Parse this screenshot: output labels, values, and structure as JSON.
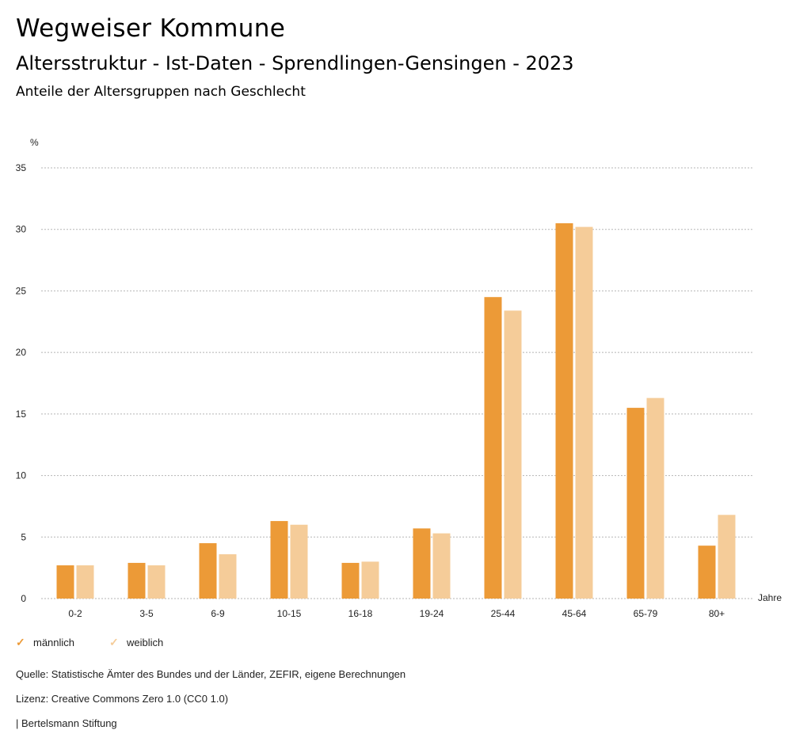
{
  "header": {
    "title": "Wegweiser Kommune",
    "subtitle": "Altersstruktur - Ist-Daten - Sprendlingen-Gensingen - 2023",
    "subsubtitle": "Anteile der Altersgruppen nach Geschlecht"
  },
  "chart_data": {
    "type": "bar",
    "title": "Anteile der Altersgruppen nach Geschlecht",
    "ylabel": "%",
    "xlabel": "Jahre",
    "ylim": [
      0,
      35
    ],
    "yticks": [
      0,
      5,
      10,
      15,
      20,
      25,
      30,
      35
    ],
    "grid": true,
    "legend_position": "bottom-left",
    "categories": [
      "0-2",
      "3-5",
      "6-9",
      "10-15",
      "16-18",
      "19-24",
      "25-44",
      "45-64",
      "65-79",
      "80+"
    ],
    "series": [
      {
        "name": "männlich",
        "color": "#ec9a37",
        "values": [
          2.7,
          2.9,
          4.5,
          6.3,
          2.9,
          5.7,
          24.5,
          30.5,
          15.5,
          4.3
        ]
      },
      {
        "name": "weiblich",
        "color": "#f5cc99",
        "values": [
          2.7,
          2.7,
          3.6,
          6.0,
          3.0,
          5.3,
          23.4,
          30.2,
          16.3,
          6.8
        ]
      }
    ]
  },
  "footer": {
    "source": "Quelle: Statistische Ämter des Bundes und der Länder, ZEFIR, eigene Berechnungen",
    "license": "Lizenz: Creative Commons Zero 1.0 (CC0 1.0)",
    "publisher": "| Bertelsmann Stiftung"
  }
}
